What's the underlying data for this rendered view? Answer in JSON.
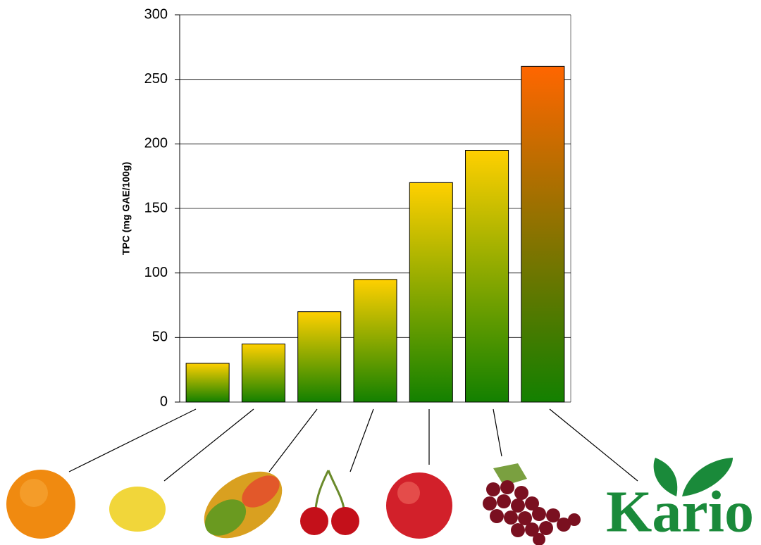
{
  "chart_data": {
    "type": "bar",
    "y_label": "TPC (mg GAE/100g)",
    "categories": [
      null,
      null,
      null,
      null,
      null,
      null,
      null
    ],
    "values": [
      30,
      45,
      70,
      95,
      170,
      195,
      260
    ],
    "colors": [
      "#ffd000",
      "#ffd000",
      "#ffd000",
      "#ffd000",
      "#ffd000",
      "#ffd000",
      "#ff6600"
    ],
    "base_color": "#138000",
    "ylim": [
      0,
      300
    ],
    "yticks": [
      0,
      50,
      100,
      150,
      200,
      250,
      300
    ],
    "grid": true,
    "annotations": [
      "Kario"
    ]
  }
}
